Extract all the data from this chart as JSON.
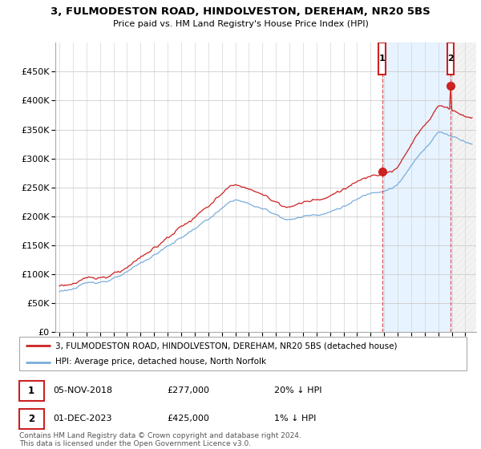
{
  "title1": "3, FULMODESTON ROAD, HINDOLVESTON, DEREHAM, NR20 5BS",
  "title2": "Price paid vs. HM Land Registry's House Price Index (HPI)",
  "legend_line1": "3, FULMODESTON ROAD, HINDOLVESTON, DEREHAM, NR20 5BS (detached house)",
  "legend_line2": "HPI: Average price, detached house, North Norfolk",
  "annotation1": {
    "label": "1",
    "date": "05-NOV-2018",
    "price": "£277,000",
    "pct": "20% ↓ HPI"
  },
  "annotation2": {
    "label": "2",
    "date": "01-DEC-2023",
    "price": "£425,000",
    "pct": "1% ↓ HPI"
  },
  "footer": "Contains HM Land Registry data © Crown copyright and database right 2024.\nThis data is licensed under the Open Government Licence v3.0.",
  "hpi_color": "#7aaddb",
  "price_color": "#cc2222",
  "ylim": [
    0,
    500000
  ],
  "yticks": [
    0,
    50000,
    100000,
    150000,
    200000,
    250000,
    300000,
    350000,
    400000,
    450000
  ],
  "sale1_x": 2018.85,
  "sale1_y": 277000,
  "sale2_x": 2023.92,
  "sale2_y": 425000,
  "xmin": 1995,
  "xmax": 2025.5
}
